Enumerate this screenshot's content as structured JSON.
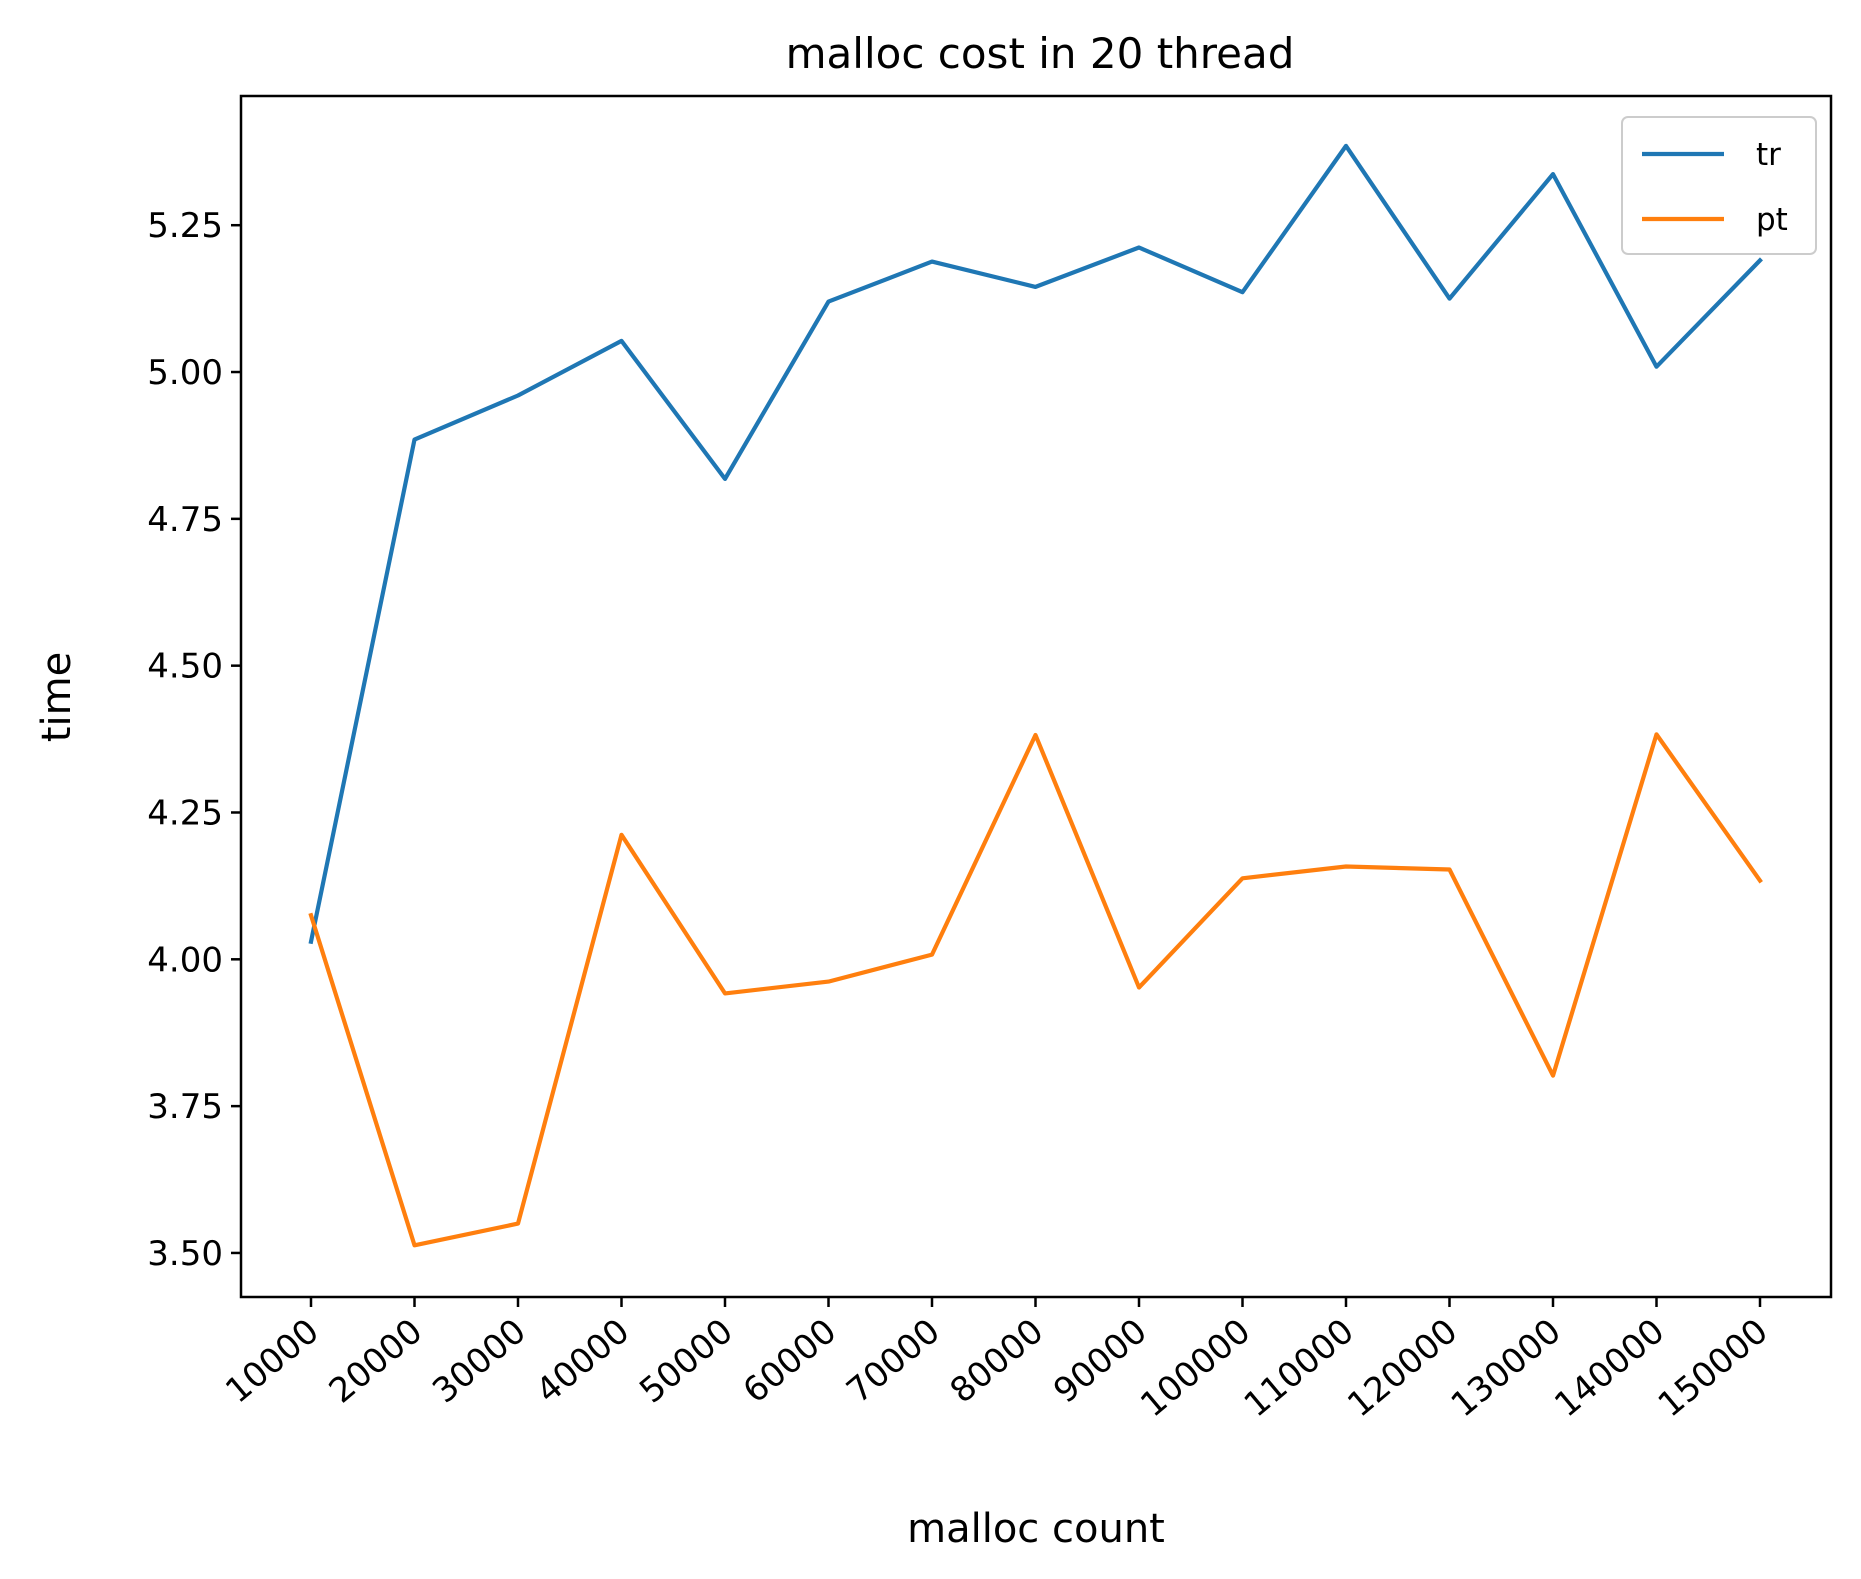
{
  "chart_data": {
    "type": "line",
    "title": "malloc cost in 20 thread",
    "xlabel": "malloc count",
    "ylabel": "time",
    "categories": [
      "10000",
      "20000",
      "30000",
      "40000",
      "50000",
      "60000",
      "70000",
      "80000",
      "90000",
      "100000",
      "110000",
      "120000",
      "130000",
      "140000",
      "150000"
    ],
    "ylim": [
      3.425,
      5.47
    ],
    "yticks": [
      "3.50",
      "3.75",
      "4.00",
      "4.25",
      "4.50",
      "4.75",
      "5.00",
      "5.25"
    ],
    "series": [
      {
        "name": "tr",
        "color": "#1f77b4",
        "values": [
          4.03,
          4.885,
          4.96,
          5.053,
          4.818,
          5.12,
          5.188,
          5.145,
          5.212,
          5.136,
          5.385,
          5.125,
          5.337,
          5.009,
          5.19
        ]
      },
      {
        "name": "pt",
        "color": "#ff7f0e",
        "values": [
          4.075,
          3.513,
          3.55,
          4.212,
          3.942,
          3.962,
          4.008,
          4.382,
          3.952,
          4.138,
          4.158,
          4.153,
          3.802,
          4.383,
          4.134
        ]
      }
    ],
    "grid": false,
    "legend": "upper right"
  }
}
